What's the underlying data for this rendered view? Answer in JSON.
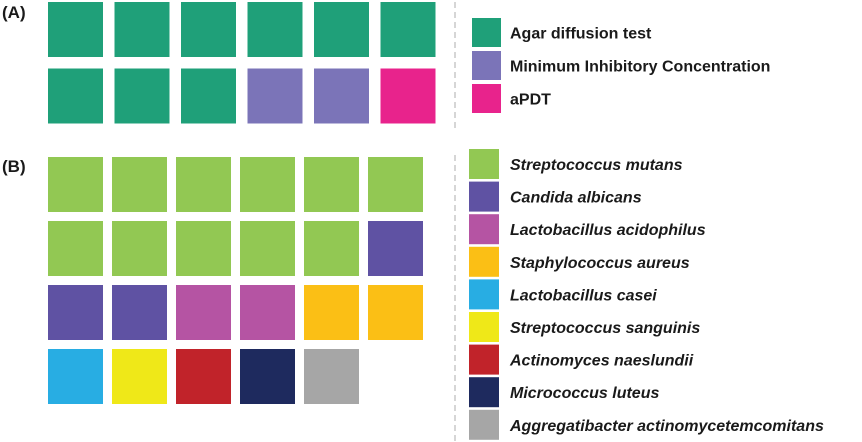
{
  "chart_data": [
    {
      "type": "waffle",
      "panel_label": "(A)",
      "categories": [
        "Agar diffusion test",
        "Minimum Inhibitory Concentration",
        "aPDT"
      ],
      "values": [
        9,
        2,
        1
      ],
      "colors": [
        "#1fa079",
        "#7b74b8",
        "#e8238c"
      ],
      "columns": 6,
      "legend_position": "right",
      "legend_italic": false
    },
    {
      "type": "waffle",
      "panel_label": "(B)",
      "categories": [
        "Streptococcus mutans",
        "Candida albicans",
        "Lactobacillus acidophilus",
        "Staphylococcus aureus",
        "Lactobacillus casei",
        "Streptococcus sanguinis",
        "Actinomyces naeslundii",
        "Micrococcus luteus",
        "Aggregatibacter actinomycetemcomitans"
      ],
      "values": [
        11,
        3,
        2,
        2,
        1,
        1,
        1,
        1,
        1
      ],
      "colors": [
        "#92c853",
        "#5f52a3",
        "#b554a3",
        "#fbbf15",
        "#28ade3",
        "#efe818",
        "#c1232a",
        "#1e2a5e",
        "#a6a6a6"
      ],
      "columns": 6,
      "legend_position": "right",
      "legend_italic": true
    }
  ]
}
